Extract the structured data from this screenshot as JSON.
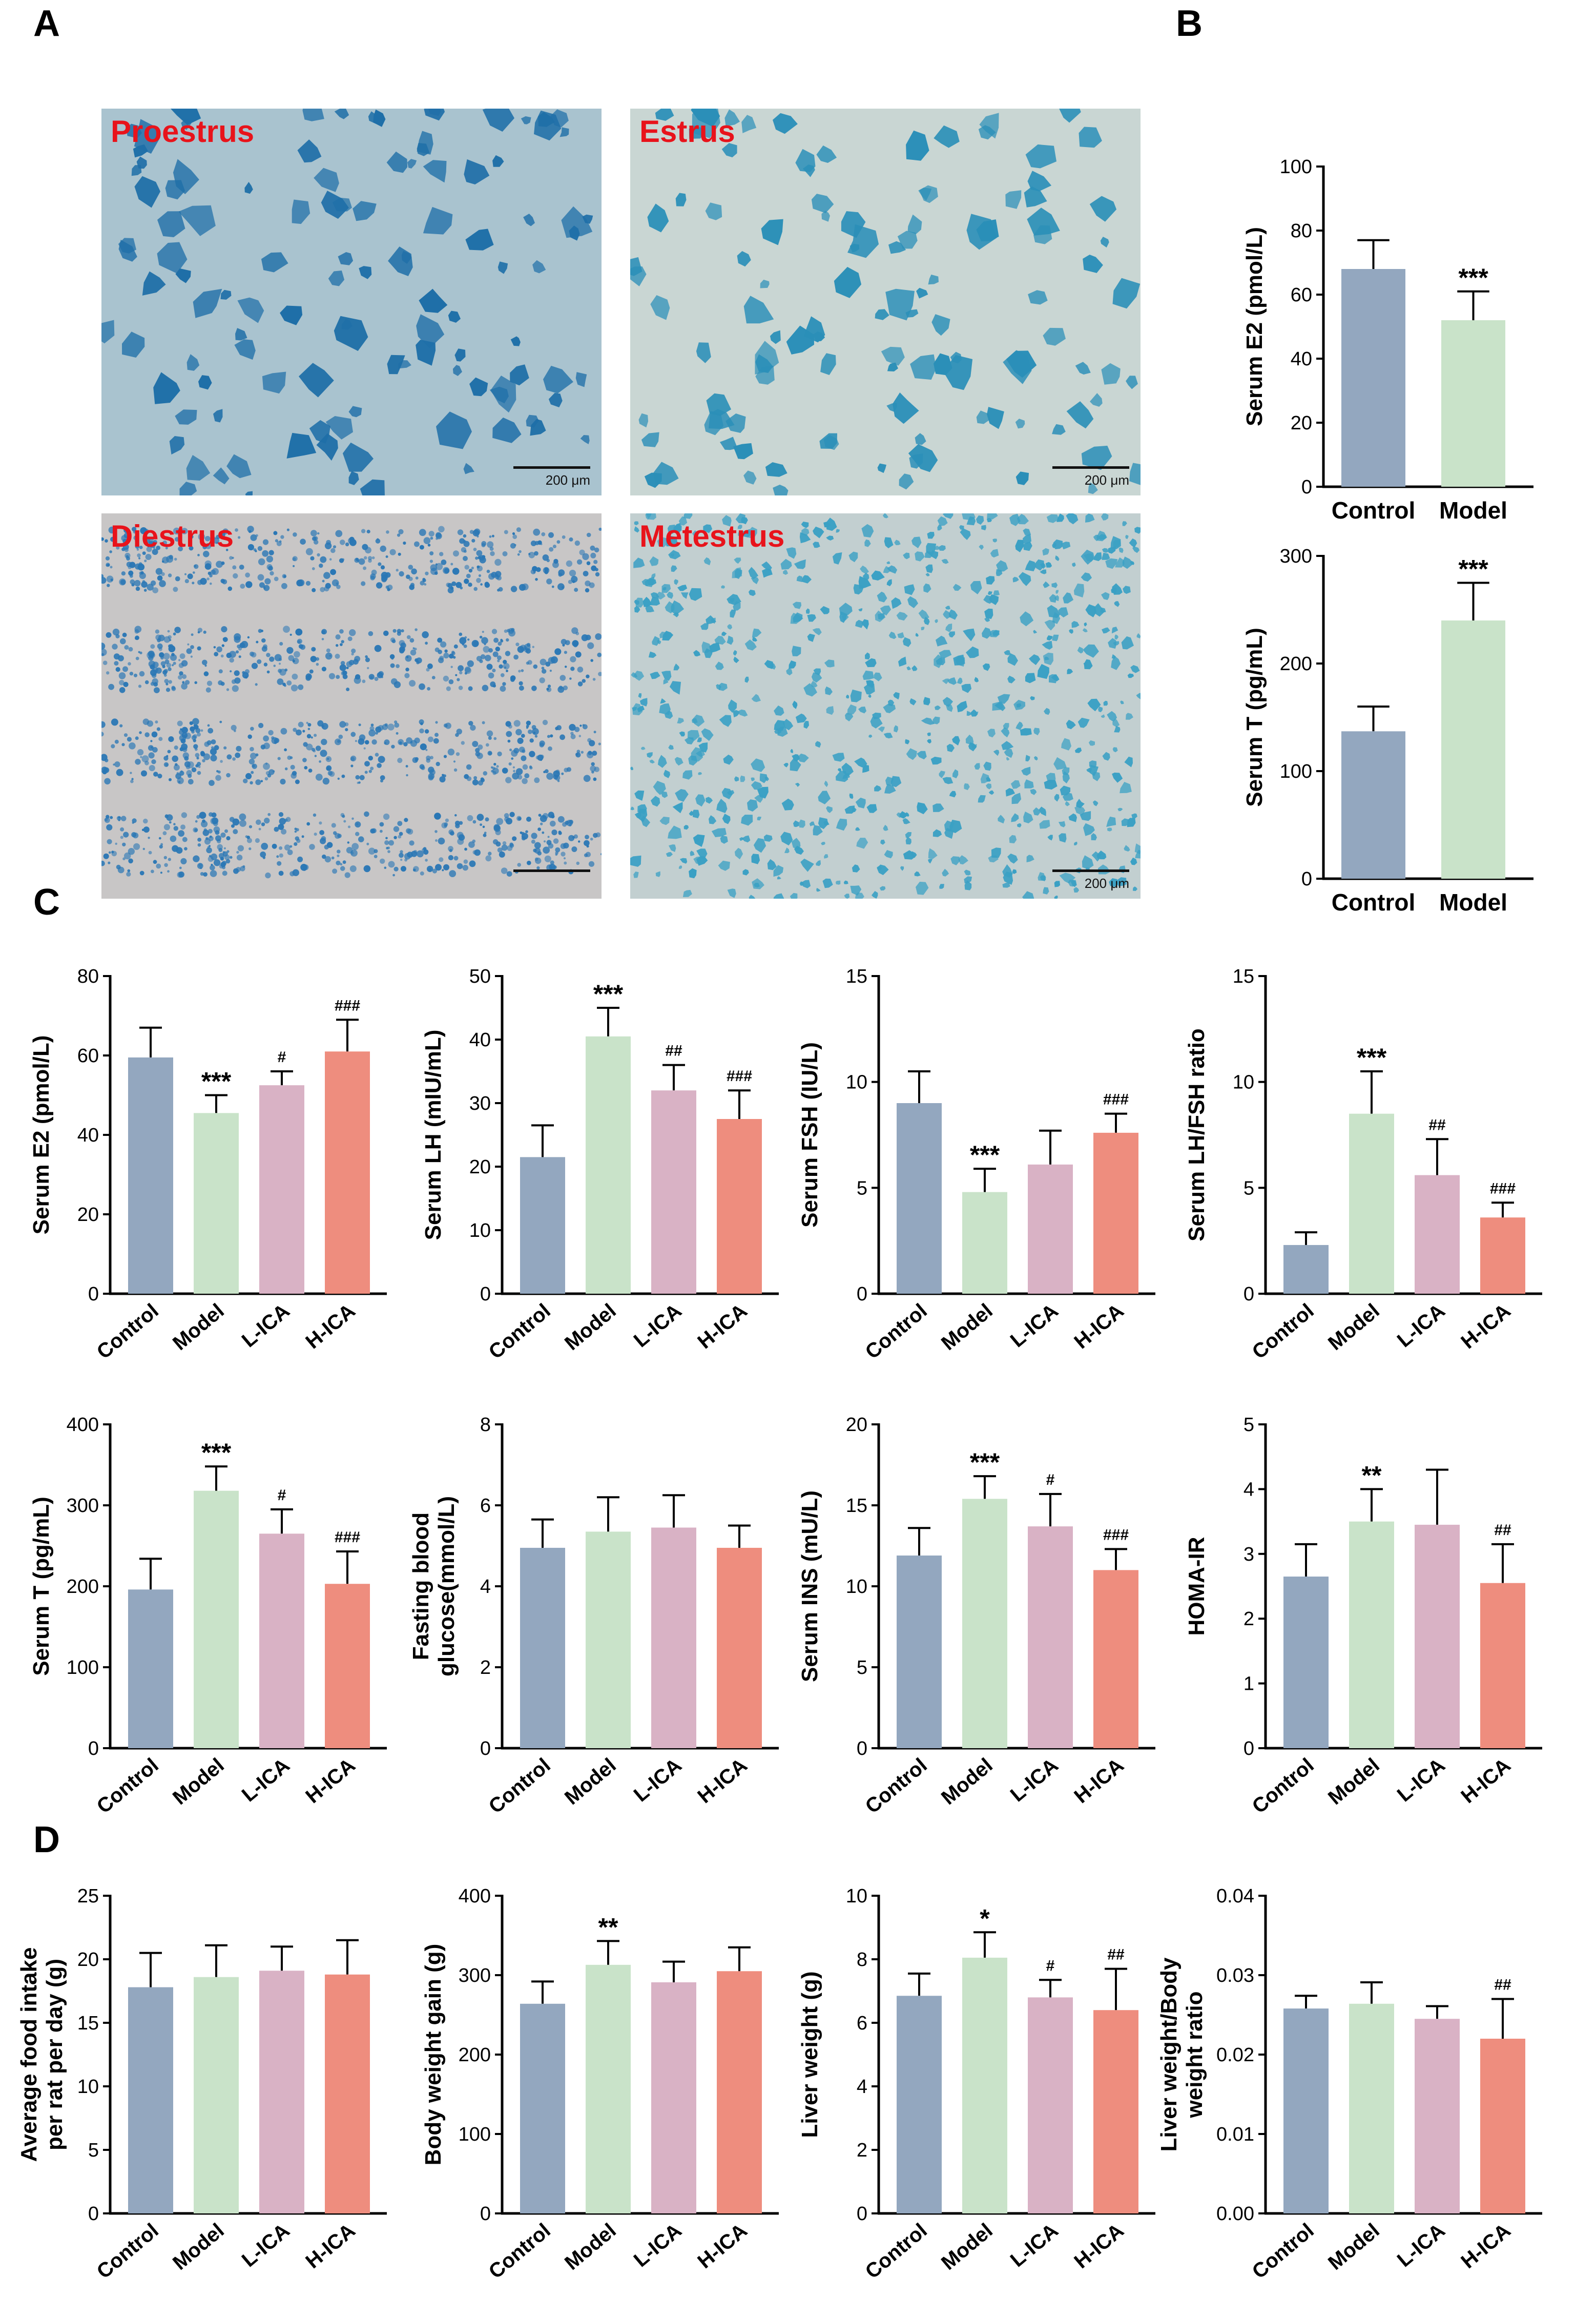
{
  "panel_letters": {
    "a": "A",
    "b": "B",
    "c": "C",
    "d": "D"
  },
  "micrographs": [
    {
      "label": "Proestrus",
      "scale": "200 μm",
      "bg": "#a9c3cf",
      "cell": "#1f6fa8",
      "style": "clumps"
    },
    {
      "label": "Estrus",
      "scale": "200 μm",
      "bg": "#c9d6d3",
      "cell": "#2b8fb8",
      "style": "flakes"
    },
    {
      "label": "Diestrus",
      "scale": "",
      "bg": "#c8c6c6",
      "cell": "#2a77b5",
      "style": "bands"
    },
    {
      "label": "Metestrus",
      "scale": "200 μm",
      "bg": "#c2cfd0",
      "cell": "#3aa0c4",
      "style": "dense"
    }
  ],
  "colors": {
    "control": "#93a7bf",
    "model": "#c9e3c9",
    "l_ica": "#d9b2c5",
    "h_ica": "#ee8d7e",
    "axis": "#000000"
  },
  "chart_data": [
    {
      "id": "B1",
      "type": "bar",
      "ylabel": "Serum E2 (pmol/L)",
      "ylim": [
        0,
        100
      ],
      "yticks": [
        "0",
        "20",
        "40",
        "60",
        "80",
        "100"
      ],
      "categories": [
        "Control",
        "Model"
      ],
      "values": [
        68,
        52
      ],
      "errors": [
        9,
        9
      ],
      "annotations": [
        "",
        "***"
      ],
      "rotate": false
    },
    {
      "id": "B2",
      "type": "bar",
      "ylabel": "Serum T (pg/mL)",
      "ylim": [
        0,
        300
      ],
      "yticks": [
        "0",
        "100",
        "200",
        "300"
      ],
      "categories": [
        "Control",
        "Model"
      ],
      "values": [
        137,
        240
      ],
      "errors": [
        23,
        35
      ],
      "annotations": [
        "",
        "***"
      ],
      "rotate": false
    },
    {
      "id": "C1",
      "type": "bar",
      "ylabel": "Serum E2 (pmol/L)",
      "ylim": [
        0,
        80
      ],
      "yticks": [
        "0",
        "20",
        "40",
        "60",
        "80"
      ],
      "categories": [
        "Control",
        "Model",
        "L-ICA",
        "H-ICA"
      ],
      "values": [
        59.5,
        45.5,
        52.5,
        61
      ],
      "errors": [
        7.5,
        4.5,
        3.5,
        8
      ],
      "annotations": [
        "",
        "***",
        "#",
        "###"
      ],
      "rotate": true
    },
    {
      "id": "C2",
      "type": "bar",
      "ylabel": "Serum LH (mIU/mL)",
      "ylim": [
        0,
        50
      ],
      "yticks": [
        "0",
        "10",
        "20",
        "30",
        "40",
        "50"
      ],
      "categories": [
        "Control",
        "Model",
        "L-ICA",
        "H-ICA"
      ],
      "values": [
        21.5,
        40.5,
        32,
        27.5
      ],
      "errors": [
        5,
        4.5,
        4,
        4.5
      ],
      "annotations": [
        "",
        "***",
        "##",
        "###"
      ],
      "rotate": true
    },
    {
      "id": "C3",
      "type": "bar",
      "ylabel": "Serum FSH (IU/L)",
      "ylim": [
        0,
        15
      ],
      "yticks": [
        "0",
        "5",
        "10",
        "15"
      ],
      "categories": [
        "Control",
        "Model",
        "L-ICA",
        "H-ICA"
      ],
      "values": [
        9,
        4.8,
        6.1,
        7.6
      ],
      "errors": [
        1.5,
        1.1,
        1.6,
        0.9
      ],
      "annotations": [
        "",
        "***",
        "",
        "###"
      ],
      "rotate": true
    },
    {
      "id": "C4",
      "type": "bar",
      "ylabel": "Serum LH/FSH ratio",
      "ylim": [
        0,
        15
      ],
      "yticks": [
        "0",
        "5",
        "10",
        "15"
      ],
      "categories": [
        "Control",
        "Model",
        "L-ICA",
        "H-ICA"
      ],
      "values": [
        2.3,
        8.5,
        5.6,
        3.6
      ],
      "errors": [
        0.6,
        2,
        1.7,
        0.7
      ],
      "annotations": [
        "",
        "***",
        "##",
        "###"
      ],
      "rotate": true
    },
    {
      "id": "C5",
      "type": "bar",
      "ylabel": "Serum T (pg/mL)",
      "ylim": [
        0,
        400
      ],
      "yticks": [
        "0",
        "100",
        "200",
        "300",
        "400"
      ],
      "categories": [
        "Control",
        "Model",
        "L-ICA",
        "H-ICA"
      ],
      "values": [
        196,
        318,
        265,
        203
      ],
      "errors": [
        38,
        30,
        30,
        40
      ],
      "annotations": [
        "",
        "***",
        "#",
        "###"
      ],
      "rotate": true
    },
    {
      "id": "C6",
      "type": "bar",
      "ylabel": "Fasting blood glucose(mmol/L)",
      "ylabel_lines": [
        "Fasting blood",
        "glucose(mmol/L)"
      ],
      "ylim": [
        0,
        8
      ],
      "yticks": [
        "0",
        "2",
        "4",
        "6",
        "8"
      ],
      "categories": [
        "Control",
        "Model",
        "L-ICA",
        "H-ICA"
      ],
      "values": [
        4.95,
        5.35,
        5.45,
        4.95
      ],
      "errors": [
        0.7,
        0.85,
        0.8,
        0.55
      ],
      "annotations": [
        "",
        "",
        "",
        ""
      ],
      "rotate": true
    },
    {
      "id": "C7",
      "type": "bar",
      "ylabel": "Serum INS (mU/L)",
      "ylim": [
        0,
        20
      ],
      "yticks": [
        "0",
        "5",
        "10",
        "15",
        "20"
      ],
      "categories": [
        "Control",
        "Model",
        "L-ICA",
        "H-ICA"
      ],
      "values": [
        11.9,
        15.4,
        13.7,
        11
      ],
      "errors": [
        1.7,
        1.4,
        2,
        1.3
      ],
      "annotations": [
        "",
        "***",
        "#",
        "###"
      ],
      "rotate": true
    },
    {
      "id": "C8",
      "type": "bar",
      "ylabel": "HOMA-IR",
      "ylim": [
        0,
        5
      ],
      "yticks": [
        "0",
        "1",
        "2",
        "3",
        "4",
        "5"
      ],
      "categories": [
        "Control",
        "Model",
        "L-ICA",
        "H-ICA"
      ],
      "values": [
        2.65,
        3.5,
        3.45,
        2.55
      ],
      "errors": [
        0.5,
        0.5,
        0.85,
        0.6
      ],
      "annotations": [
        "",
        "**",
        "",
        "##"
      ],
      "rotate": true
    },
    {
      "id": "D1",
      "type": "bar",
      "ylabel": "Average food intake per rat per day (g)",
      "ylabel_lines": [
        "Average food intake",
        "per rat per day (g)"
      ],
      "ylim": [
        0,
        25
      ],
      "yticks": [
        "0",
        "5",
        "10",
        "15",
        "20",
        "25"
      ],
      "categories": [
        "Control",
        "Model",
        "L-ICA",
        "H-ICA"
      ],
      "values": [
        17.8,
        18.6,
        19.1,
        18.8
      ],
      "errors": [
        2.7,
        2.5,
        1.9,
        2.7
      ],
      "annotations": [
        "",
        "",
        "",
        ""
      ],
      "rotate": true
    },
    {
      "id": "D2",
      "type": "bar",
      "ylabel": "Body weight gain (g)",
      "ylim": [
        0,
        400
      ],
      "yticks": [
        "0",
        "100",
        "200",
        "300",
        "400"
      ],
      "categories": [
        "Control",
        "Model",
        "L-ICA",
        "H-ICA"
      ],
      "values": [
        264,
        313,
        291,
        305
      ],
      "errors": [
        28,
        30,
        26,
        30
      ],
      "annotations": [
        "",
        "**",
        "",
        ""
      ],
      "rotate": true
    },
    {
      "id": "D3",
      "type": "bar",
      "ylabel": "Liver weight (g)",
      "ylim": [
        0,
        10
      ],
      "yticks": [
        "0",
        "2",
        "4",
        "6",
        "8",
        "10"
      ],
      "categories": [
        "Control",
        "Model",
        "L-ICA",
        "H-ICA"
      ],
      "values": [
        6.85,
        8.05,
        6.8,
        6.4
      ],
      "errors": [
        0.7,
        0.8,
        0.55,
        1.3
      ],
      "annotations": [
        "",
        "*",
        "#",
        "##"
      ],
      "rotate": true
    },
    {
      "id": "D4",
      "type": "bar",
      "ylabel": "Liver weight/Body weight ratio",
      "ylabel_lines": [
        "Liver weight/Body",
        "weight ratio"
      ],
      "ylim": [
        0,
        0.04
      ],
      "yticks": [
        "0.00",
        "0.01",
        "0.02",
        "0.03",
        "0.04"
      ],
      "categories": [
        "Control",
        "Model",
        "L-ICA",
        "H-ICA"
      ],
      "values": [
        0.0258,
        0.0264,
        0.0245,
        0.022
      ],
      "errors": [
        0.0016,
        0.0027,
        0.0016,
        0.005
      ],
      "annotations": [
        "",
        "",
        "",
        "##"
      ],
      "rotate": true
    }
  ]
}
